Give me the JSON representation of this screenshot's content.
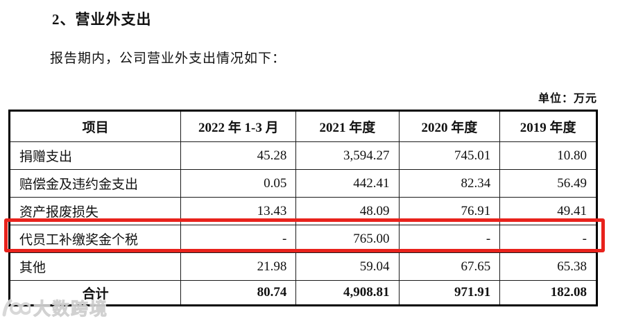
{
  "page": {
    "section_title": "2、营业外支出",
    "intro_text": "报告期内，公司营业外支出情况如下：",
    "unit_label": "单位：万元"
  },
  "table": {
    "columns": [
      "项目",
      "2022 年 1-3 月",
      "2021 年度",
      "2020 年度",
      "2019 年度"
    ],
    "rows": [
      {
        "item": "捐赠支出",
        "values": [
          "45.28",
          "3,594.27",
          "745.01",
          "10.80"
        ],
        "highlighted": false
      },
      {
        "item": "赔偿金及违约金支出",
        "values": [
          "0.05",
          "442.41",
          "82.34",
          "56.49"
        ],
        "highlighted": false
      },
      {
        "item": "资产报废损失",
        "values": [
          "13.43",
          "48.09",
          "76.91",
          "49.41"
        ],
        "highlighted": false
      },
      {
        "item": "代员工补缴奖金个税",
        "values": [
          "-",
          "765.00",
          "-",
          "-"
        ],
        "highlighted": true
      },
      {
        "item": "其他",
        "values": [
          "21.98",
          "59.04",
          "67.65",
          "65.38"
        ],
        "highlighted": false
      }
    ],
    "total_row": {
      "item": "合计",
      "values": [
        "80.74",
        "4,908.81",
        "971.91",
        "182.08"
      ]
    }
  },
  "watermark": {
    "text": "大数跨境"
  },
  "colors": {
    "highlight_border": "#e8221c",
    "text": "#111111",
    "watermark": "#d6d6d6"
  }
}
